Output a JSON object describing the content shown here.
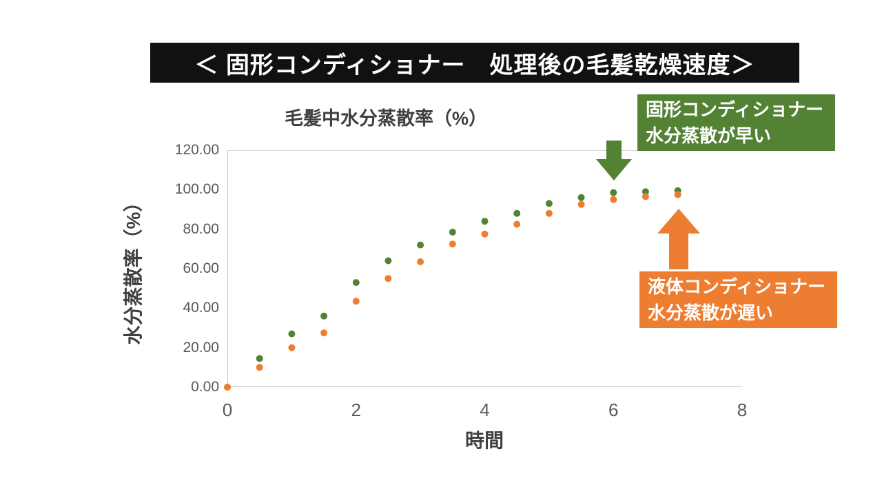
{
  "banner": {
    "title": "＜ 固形コンディショナー　処理後の毛髪乾燥速度＞"
  },
  "chart_data": {
    "type": "scatter",
    "title": "毛髪中水分蒸散率（%）",
    "xlabel": "時間",
    "ylabel": "水分蒸散率（%）",
    "xlim": [
      0,
      8
    ],
    "ylim": [
      0,
      120
    ],
    "xticks": [
      0,
      2,
      4,
      6,
      8
    ],
    "yticks": [
      0,
      20,
      40,
      60,
      80,
      100,
      120
    ],
    "ytick_labels": [
      "0.00",
      "20.00",
      "40.00",
      "60.00",
      "80.00",
      "100.00",
      "120.00"
    ],
    "grid": false,
    "legend_position": "none",
    "x": [
      0,
      0.5,
      1,
      1.5,
      2,
      2.5,
      3,
      3.5,
      4,
      4.5,
      5,
      5.5,
      6,
      6.5,
      7
    ],
    "series": [
      {
        "name": "固形コンディショナー",
        "color": "#548235",
        "values": [
          0,
          14.5,
          27,
          36,
          53,
          64,
          72,
          78.5,
          84,
          88,
          93,
          96,
          98.5,
          99,
          99.5
        ]
      },
      {
        "name": "液体コンディショナー",
        "color": "#ED7D31",
        "values": [
          0,
          10,
          20,
          27.5,
          43.5,
          55,
          63.5,
          72.5,
          77.5,
          82.5,
          88,
          92.5,
          95,
          96.5,
          97.5
        ]
      }
    ]
  },
  "callouts": {
    "green": {
      "line1": "固形コンディショナー",
      "line2": "水分蒸散が早い",
      "color": "#548235"
    },
    "orange": {
      "line1": "液体コンディショナー",
      "line2": "水分蒸散が遅い",
      "color": "#ED7D31"
    }
  }
}
